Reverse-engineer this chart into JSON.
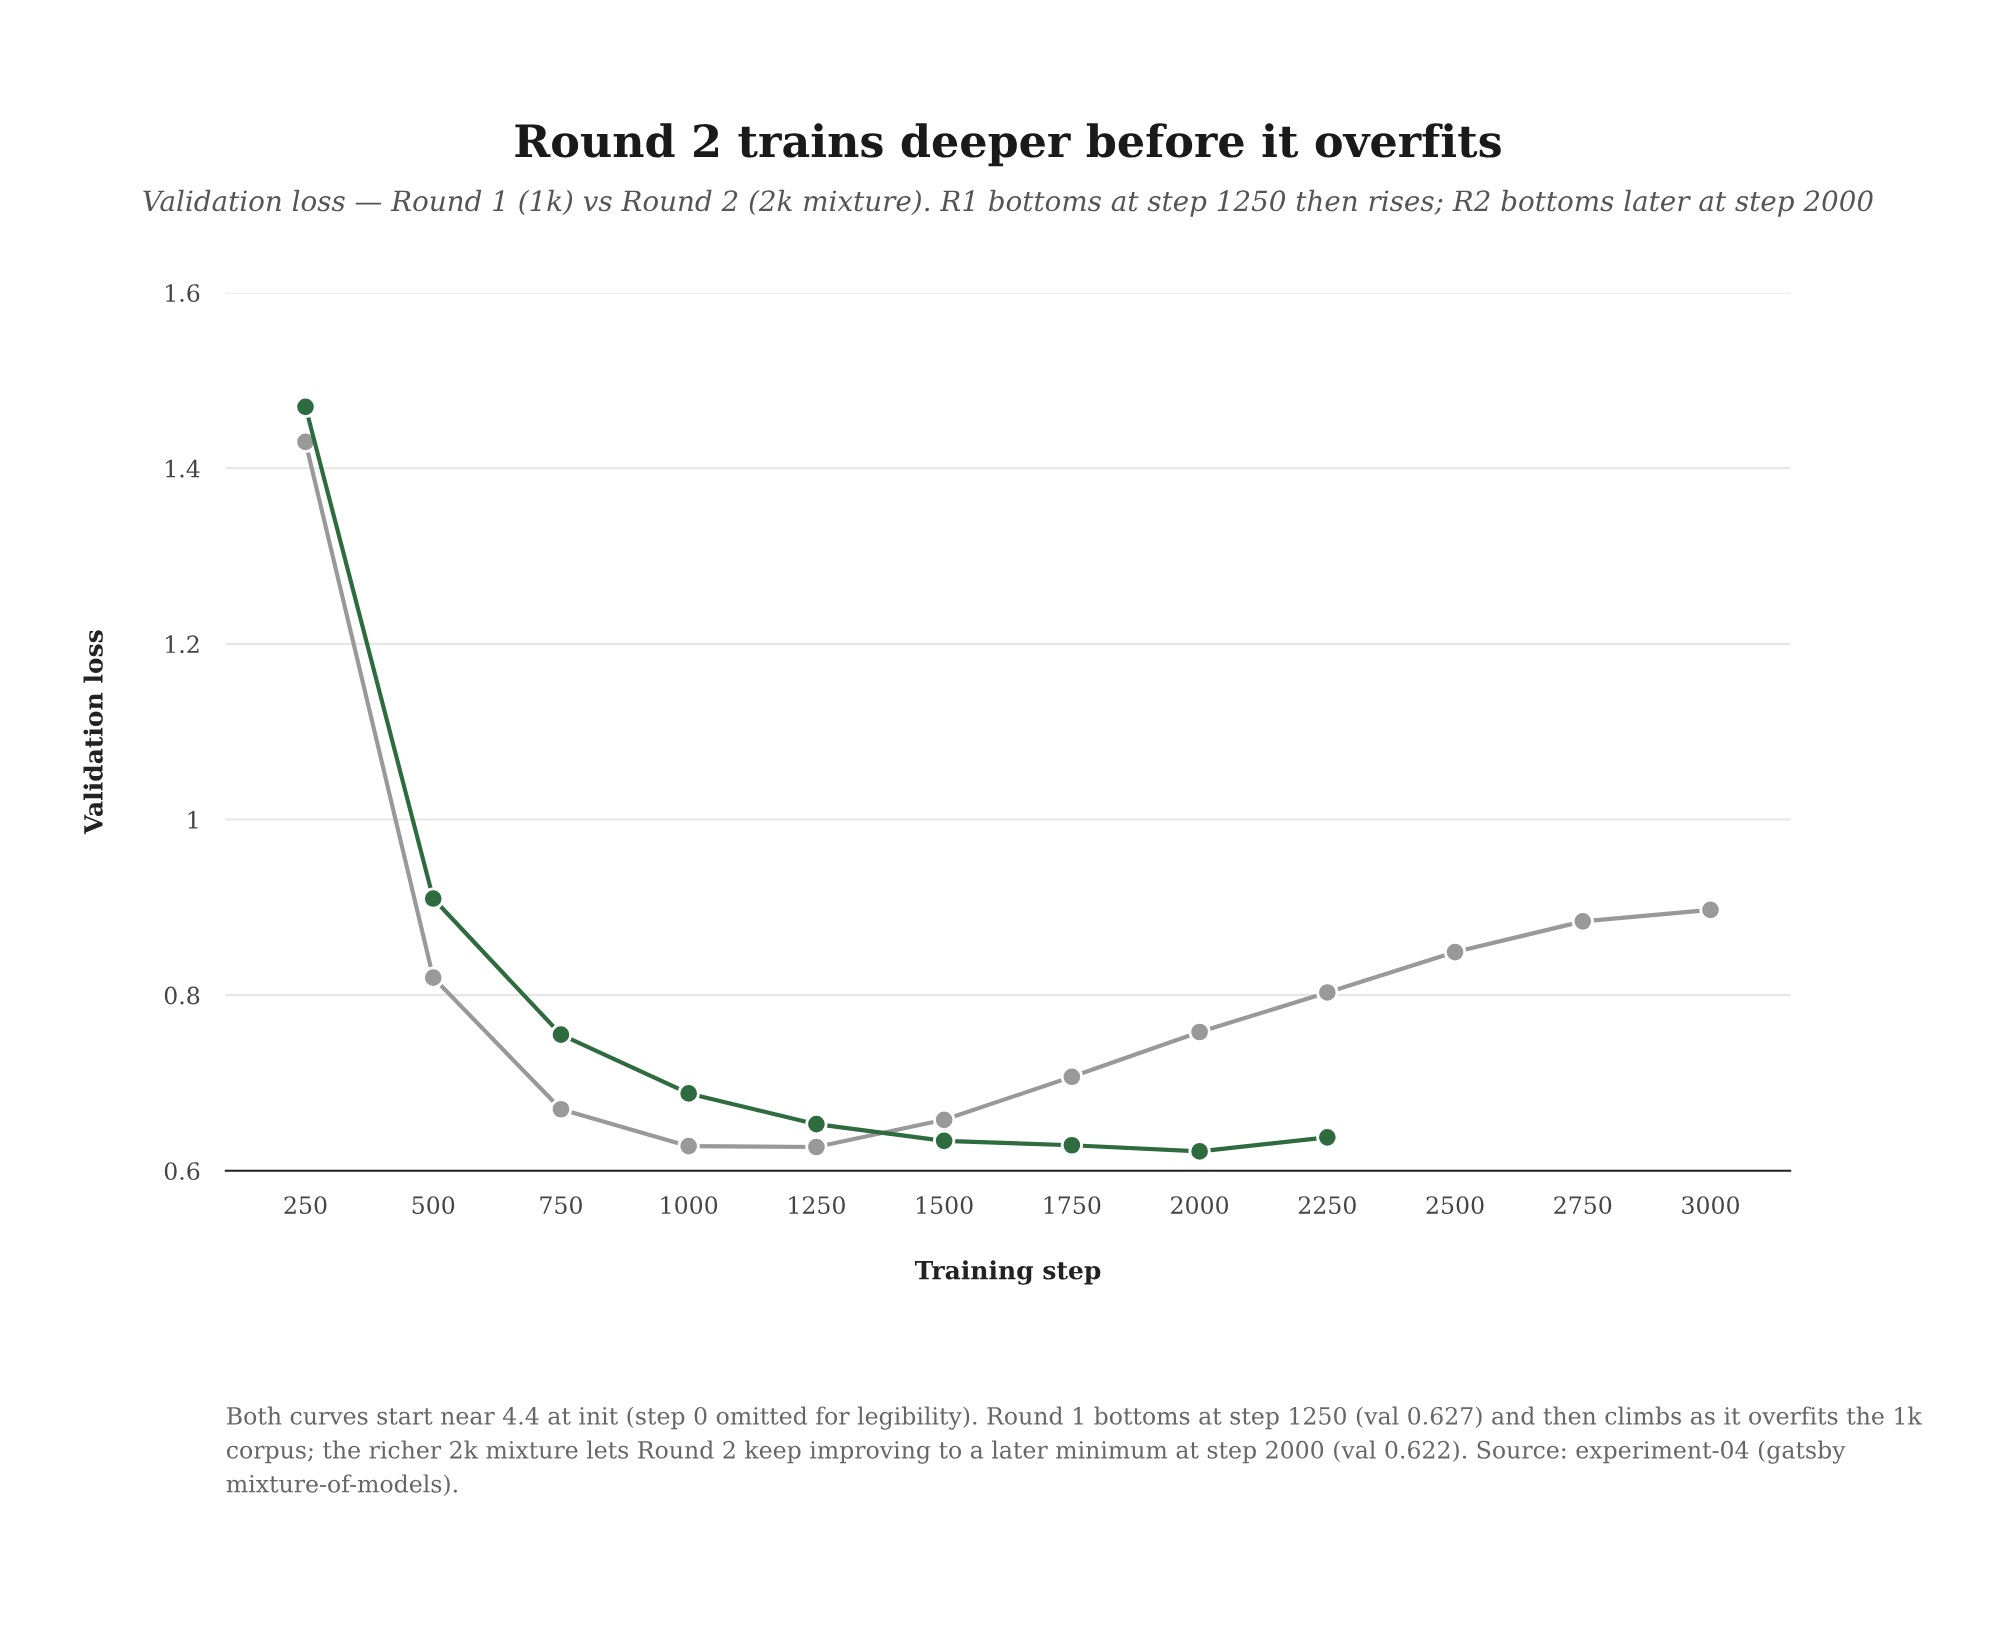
{
  "chart_data": {
    "type": "line",
    "title": "Round 2 trains deeper before it overfits",
    "subtitle": "Validation loss — Round 1 (1k) vs Round 2 (2k mixture). R1 bottoms at step 1250 then rises; R2 bottoms later at step 2000",
    "xlabel": "Training step",
    "ylabel": "Validation loss",
    "x": [
      250,
      500,
      750,
      1000,
      1250,
      1500,
      1750,
      2000,
      2250,
      2500,
      2750,
      3000
    ],
    "series": [
      {
        "color": "#999999",
        "values": [
          1.43,
          0.82,
          0.67,
          0.628,
          0.627,
          0.658,
          0.707,
          0.758,
          0.803,
          0.849,
          0.884,
          0.897
        ]
      },
      {
        "color": "#2e6b3f",
        "x": [
          250,
          500,
          750,
          1000,
          1250,
          1500,
          1750,
          2000,
          2250
        ],
        "values": [
          1.47,
          0.91,
          0.755,
          0.688,
          0.653,
          0.634,
          0.629,
          0.622,
          0.638
        ]
      }
    ],
    "xlim": [
      94,
      3156
    ],
    "xticks": [
      250,
      500,
      750,
      1000,
      1250,
      1500,
      1750,
      2000,
      2250,
      2500,
      2750,
      3000
    ],
    "ylim": [
      0.6,
      1.6
    ],
    "yticks": [
      0.6,
      0.8,
      1,
      1.2,
      1.4,
      1.6
    ],
    "grid": "y",
    "marker": "circle",
    "line_style": "solid",
    "annotations": [
      "Both curves start near 4.4 at init (step 0 omitted for legibility). Round 1 bottoms at step 1250 (val 0.627) and then climbs as it overfits the 1k corpus; the richer 2k mixture lets Round 2 keep improving to a later minimum at step 2000 (val 0.622). Source: experiment-04 (gatsby mixture-of-models)."
    ]
  }
}
